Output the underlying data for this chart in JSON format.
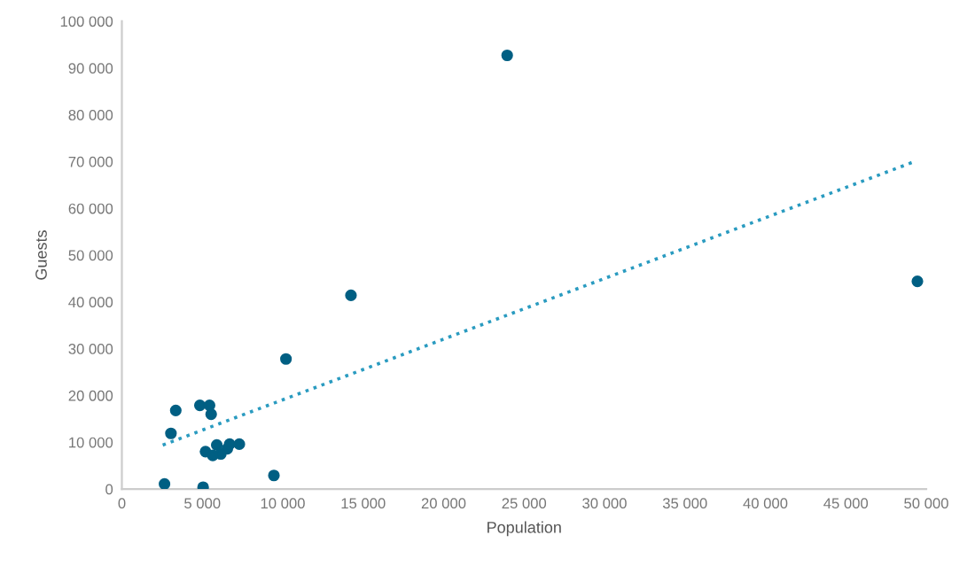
{
  "chart_data": {
    "type": "scatter",
    "xlabel": "Population",
    "ylabel": "Guests",
    "xlim": [
      0,
      50000
    ],
    "ylim": [
      0,
      100000
    ],
    "xticks": [
      {
        "value": 0,
        "label": "0"
      },
      {
        "value": 5000,
        "label": "5 000"
      },
      {
        "value": 10000,
        "label": "10 000"
      },
      {
        "value": 15000,
        "label": "15 000"
      },
      {
        "value": 20000,
        "label": "20 000"
      },
      {
        "value": 25000,
        "label": "25 000"
      },
      {
        "value": 30000,
        "label": "30 000"
      },
      {
        "value": 35000,
        "label": "35 000"
      },
      {
        "value": 40000,
        "label": "40 000"
      },
      {
        "value": 45000,
        "label": "45 000"
      },
      {
        "value": 50000,
        "label": "50 000"
      }
    ],
    "yticks": [
      {
        "value": 0,
        "label": "0"
      },
      {
        "value": 10000,
        "label": "10 000"
      },
      {
        "value": 20000,
        "label": "20 000"
      },
      {
        "value": 30000,
        "label": "30 000"
      },
      {
        "value": 40000,
        "label": "40 000"
      },
      {
        "value": 50000,
        "label": "50 000"
      },
      {
        "value": 60000,
        "label": "60 000"
      },
      {
        "value": 70000,
        "label": "70 000"
      },
      {
        "value": 80000,
        "label": "80 000"
      },
      {
        "value": 90000,
        "label": "90 000"
      },
      {
        "value": 100000,
        "label": "100 000"
      }
    ],
    "grid": false,
    "legend": false,
    "series": [
      {
        "color": "#005f83",
        "marker": "circle",
        "x": [
          2650,
          3050,
          3350,
          4850,
          5450,
          5550,
          5050,
          5200,
          5650,
          5900,
          6150,
          6550,
          6700,
          7300,
          9450,
          10200,
          23950,
          14240,
          49450
        ],
        "values": [
          1100,
          11900,
          16800,
          17900,
          17900,
          16000,
          400,
          8000,
          7200,
          9400,
          7500,
          8600,
          9600,
          9600,
          2900,
          27800,
          92700,
          41400,
          44400
        ]
      },
      {
        "type": "line",
        "color": "#2a9bc0",
        "line_style": "dotted",
        "marker": "none",
        "x": [
          2540,
          49340
        ],
        "values": [
          9400,
          70100
        ]
      }
    ]
  }
}
